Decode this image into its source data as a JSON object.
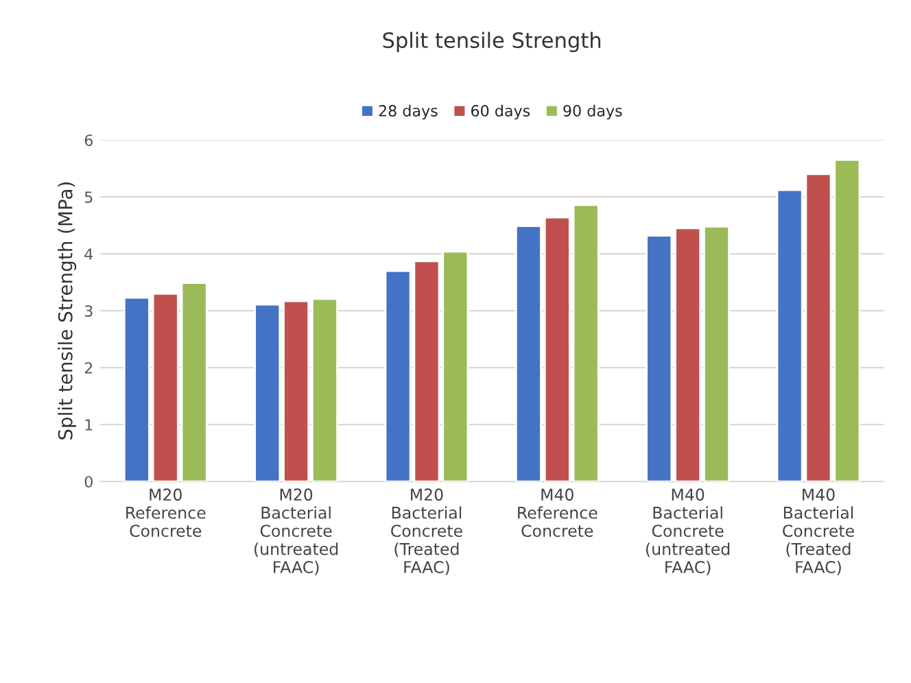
{
  "chart_data": {
    "type": "bar",
    "title": "Split tensile Strength",
    "ylabel": "Split tensile Strength (MPa)",
    "categories": [
      "M20\nReference\nConcrete",
      "M20\nBacterial\nConcrete\n(untreated\nFAAC)",
      "M20\nBacterial\nConcrete\n(Treated\nFAAC)",
      "M40\nReference\nConcrete",
      "M40\nBacterial\nConcrete\n(untreated\nFAAC)",
      "M40\nBacterial\nConcrete\n(Treated\nFAAC)"
    ],
    "series": [
      {
        "name": "28 days",
        "color": "#4472c4",
        "values": [
          3.23,
          3.11,
          3.7,
          4.49,
          4.32,
          5.12
        ]
      },
      {
        "name": "60 days",
        "color": "#c0504d",
        "values": [
          3.3,
          3.17,
          3.87,
          4.64,
          4.45,
          5.4
        ]
      },
      {
        "name": "90 days",
        "color": "#9bbb59",
        "values": [
          3.49,
          3.21,
          4.04,
          4.86,
          4.48,
          5.65
        ]
      }
    ],
    "ylim": [
      0,
      6
    ],
    "yticks": [
      0,
      1,
      2,
      3,
      4,
      5,
      6
    ],
    "grid": "y",
    "legend": "top"
  }
}
